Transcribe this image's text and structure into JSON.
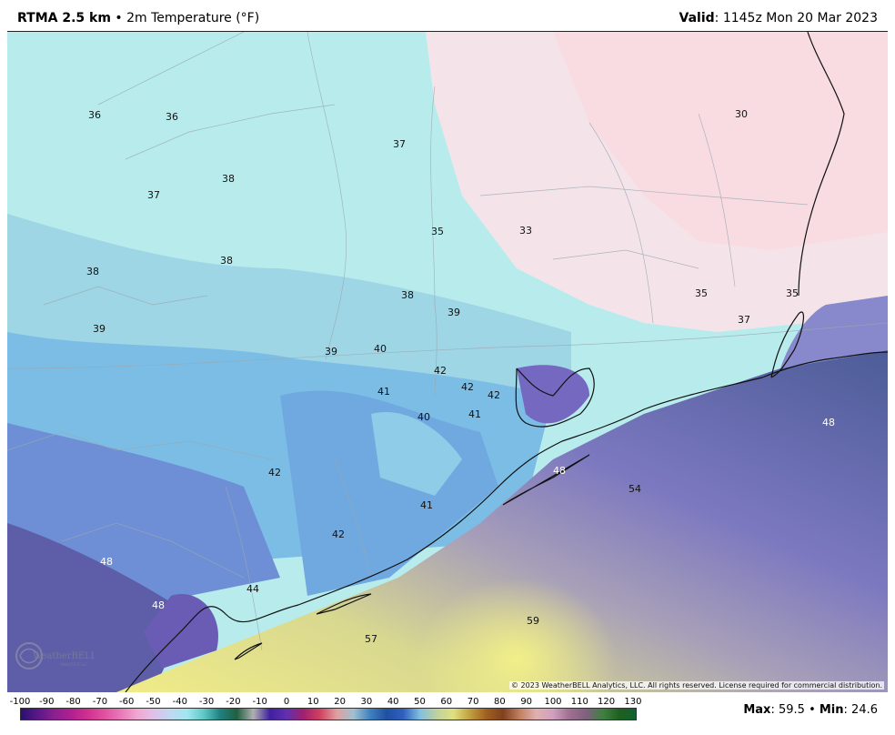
{
  "header": {
    "model": "RTMA 2.5 km",
    "separator": "•",
    "product": "2m Temperature (°F)",
    "valid_label": "Valid",
    "valid_time": ": 1145z Mon 20 Mar 2023"
  },
  "map": {
    "copyright": "© 2023 WeatherBELL Analytics, LLC. All rights reserved. License required for commercial distribution.",
    "logo_text": "WeatherBELL",
    "logo_subtext": "ANALYTICS LLC",
    "temperature_labels": [
      "36",
      "36",
      "37",
      "38",
      "37",
      "38",
      "38",
      "39",
      "37",
      "35",
      "33",
      "30",
      "38",
      "39",
      "39",
      "40",
      "42",
      "42",
      "42",
      "41",
      "41",
      "40",
      "35",
      "35",
      "37",
      "48",
      "48",
      "54",
      "42",
      "41",
      "42",
      "48",
      "48",
      "44",
      "57",
      "59"
    ]
  },
  "colorbar": {
    "tick_labels": [
      "-100",
      "-90",
      "-80",
      "-70",
      "-60",
      "-50",
      "-40",
      "-30",
      "-20",
      "-10",
      "0",
      "10",
      "20",
      "30",
      "40",
      "50",
      "60",
      "70",
      "80",
      "90",
      "100",
      "110",
      "120",
      "130"
    ],
    "colors": [
      "#2a1070",
      "#5a1888",
      "#8a2090",
      "#b02090",
      "#d03090",
      "#e050a0",
      "#e878b8",
      "#f0a8d0",
      "#e0c0e8",
      "#c0d8f0",
      "#a0e8f0",
      "#60c8c8",
      "#208080",
      "#206040",
      "#b0b0b0",
      "#4020a0",
      "#6030b0",
      "#a02070",
      "#d04060",
      "#e0a0a0",
      "#a0c0d0",
      "#4080c0",
      "#2050a0",
      "#3060c0",
      "#80c0e0",
      "#c0d0a0",
      "#e0e080",
      "#c0a040",
      "#a06020",
      "#804020",
      "#c08060",
      "#e0b0b0",
      "#d0a0c0",
      "#a07090",
      "#806080",
      "#408040",
      "#206020",
      "#106030"
    ],
    "max_label": "Max",
    "max_value": ": 59.5",
    "bullet": "•",
    "min_label": "Min",
    "min_value": ": 24.6"
  }
}
